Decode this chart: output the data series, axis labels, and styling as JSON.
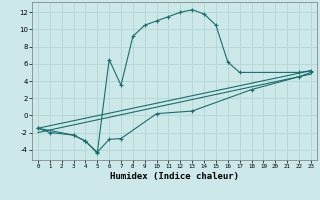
{
  "xlabel": "Humidex (Indice chaleur)",
  "bg_color": "#cce8e8",
  "grid_color": "#b8d8d8",
  "line_color": "#1a6e6e",
  "xlim": [
    -0.5,
    23.5
  ],
  "ylim": [
    -5.2,
    13.2
  ],
  "xticks": [
    0,
    1,
    2,
    3,
    4,
    5,
    6,
    7,
    8,
    9,
    10,
    11,
    12,
    13,
    14,
    15,
    16,
    17,
    18,
    19,
    20,
    21,
    22,
    23
  ],
  "yticks": [
    -4,
    -2,
    0,
    2,
    4,
    6,
    8,
    10,
    12
  ],
  "series": [
    {
      "x": [
        0,
        1,
        3,
        4,
        5,
        6,
        7,
        8,
        9,
        10,
        11,
        12,
        13,
        14,
        15,
        16,
        17,
        22,
        23
      ],
      "y": [
        -1.5,
        -2.0,
        -2.3,
        -3.0,
        -4.4,
        6.5,
        3.5,
        9.2,
        10.5,
        11.0,
        11.5,
        12.0,
        12.3,
        11.8,
        10.5,
        6.2,
        5.0,
        5.0,
        5.2
      ],
      "marker": "+"
    },
    {
      "x": [
        0,
        3,
        4,
        5,
        6,
        7,
        10,
        13,
        18,
        22,
        23
      ],
      "y": [
        -1.5,
        -2.3,
        -3.0,
        -4.3,
        -2.8,
        -2.7,
        0.2,
        0.5,
        3.0,
        4.5,
        5.0
      ],
      "marker": "+"
    },
    {
      "x": [
        0,
        23
      ],
      "y": [
        -2.0,
        4.8
      ],
      "marker": null
    },
    {
      "x": [
        0,
        23
      ],
      "y": [
        -1.5,
        5.2
      ],
      "marker": null
    }
  ]
}
